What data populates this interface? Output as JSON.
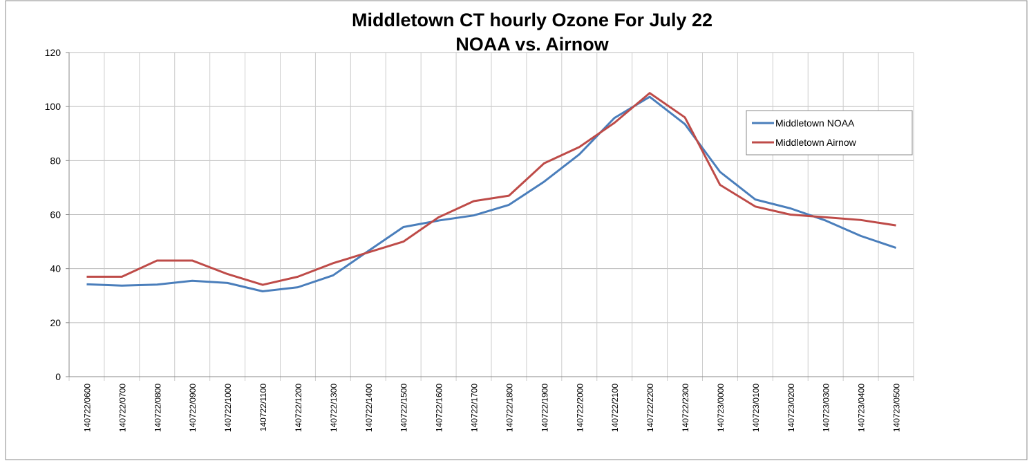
{
  "chart_data": {
    "type": "line",
    "title": [
      "Middletown CT hourly Ozone For July 22",
      "NOAA vs. Airnow"
    ],
    "categories": [
      "140722/0600",
      "140722/0700",
      "140722/0800",
      "140722/0900",
      "140722/1000",
      "140722/1100",
      "140722/1200",
      "140722/1300",
      "140722/1400",
      "140722/1500",
      "140722/1600",
      "140722/1700",
      "140722/1800",
      "140722/1900",
      "140722/2000",
      "140722/2100",
      "140722/2200",
      "140722/2300",
      "140723/0000",
      "140723/0100",
      "140723/0200",
      "140723/0300",
      "140723/0400",
      "140723/0500"
    ],
    "series": [
      {
        "name": "Middletown NOAA",
        "color": "#4a7ebb",
        "values": [
          34.2,
          33.7,
          34.1,
          35.5,
          34.7,
          31.6,
          33.1,
          37.5,
          46.5,
          55.4,
          57.8,
          59.7,
          63.6,
          72.2,
          82.3,
          95.8,
          103.6,
          93.5,
          75.8,
          65.6,
          62.3,
          57.8,
          52.1,
          47.7
        ]
      },
      {
        "name": "Middletown Airnow",
        "color": "#be4b48",
        "values": [
          37,
          37,
          43,
          43,
          38,
          34,
          37,
          42,
          46,
          50,
          59,
          65,
          67,
          79,
          85,
          94,
          105,
          96,
          71,
          63,
          60,
          59,
          58,
          56
        ]
      }
    ],
    "ylim": [
      0,
      120
    ],
    "yticks": [
      0,
      20,
      40,
      60,
      80,
      100,
      120
    ],
    "grid": true,
    "legend": "right"
  }
}
